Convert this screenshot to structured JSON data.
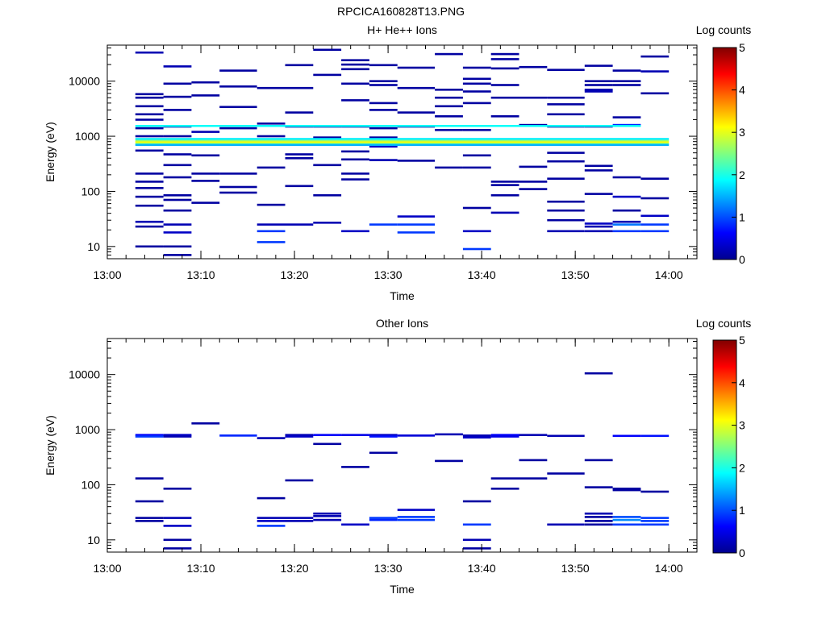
{
  "figure_title": "RPCICA160828T13.PNG",
  "colorbar_colors": [
    "#00008f",
    "#0000ff",
    "#0080ff",
    "#00ffff",
    "#80ff80",
    "#ffff00",
    "#ff8000",
    "#ff0000",
    "#800000"
  ],
  "chart_data": [
    {
      "type": "heatmap",
      "title": "H+ He++ Ions",
      "xlabel": "Time",
      "ylabel": "Energy (eV)",
      "y_scale": "log",
      "ylim": [
        6,
        45000
      ],
      "xlim": [
        "13:00",
        "14:03"
      ],
      "x_ticks": [
        "13:00",
        "13:10",
        "13:20",
        "13:30",
        "13:40",
        "13:50",
        "14:00"
      ],
      "y_ticks": [
        10,
        100,
        1000,
        10000
      ],
      "colorbar": {
        "label": "Log counts",
        "range": [
          0,
          5
        ],
        "ticks": [
          0,
          1,
          2,
          3,
          4,
          5
        ]
      },
      "time_bins": [
        "13:03",
        "13:06",
        "13:09",
        "13:12",
        "13:16",
        "13:19",
        "13:22",
        "13:25",
        "13:28",
        "13:31",
        "13:35",
        "13:38",
        "13:41",
        "13:44",
        "13:47",
        "13:51",
        "13:54",
        "13:57",
        "14:00"
      ],
      "cells": [
        {
          "t0": "13:03",
          "t1": "13:06",
          "e": [
            10,
            5000,
            3500,
            2500,
            2000,
            1400,
            1000,
            550,
            210,
            150,
            115,
            80,
            55,
            28,
            23
          ],
          "v": [
            0.1,
            0.1,
            0.1,
            0.1,
            0.1,
            0.1,
            0.1,
            0.1,
            0.1,
            0.1,
            0.1,
            0.1,
            0.1,
            0.2,
            0.1
          ]
        },
        {
          "t0": "13:03",
          "t1": "13:06",
          "e": [
            33000,
            5800
          ],
          "v": [
            0.2,
            0.1
          ]
        },
        {
          "t0": "13:06",
          "t1": "13:09",
          "e": [
            18500,
            9000,
            5200,
            3000,
            1500,
            1000,
            470,
            300,
            180,
            85,
            70,
            45,
            25,
            18,
            10,
            7
          ],
          "v": [
            0.2,
            0.1,
            0.1,
            0.1,
            0.1,
            0.1,
            0.1,
            0.1,
            0.1,
            0.1,
            0.1,
            0.1,
            0.2,
            0.3,
            0.1,
            0.1
          ]
        },
        {
          "t0": "13:09",
          "t1": "13:12",
          "e": [
            9500,
            5500,
            1200,
            450,
            210,
            155,
            62
          ],
          "v": [
            0.1,
            0.1,
            0.2,
            0.1,
            0.1,
            0.1,
            0.1
          ]
        },
        {
          "t0": "13:12",
          "t1": "13:16",
          "e": [
            15500,
            8000,
            3400,
            1400,
            210,
            120,
            95
          ],
          "v": [
            0.1,
            0.1,
            0.1,
            0.1,
            0.1,
            0.1,
            0.1
          ]
        },
        {
          "t0": "13:16",
          "t1": "13:19",
          "e": [
            7500,
            1700,
            1000,
            270,
            57,
            25,
            19,
            12
          ],
          "v": [
            0.1,
            0.1,
            0.1,
            0.1,
            0.1,
            0.2,
            0.9,
            0.9
          ]
        },
        {
          "t0": "13:19",
          "t1": "13:22",
          "e": [
            19500,
            7500,
            2700,
            1500,
            470,
            400,
            125,
            25
          ],
          "v": [
            0.1,
            0.1,
            0.1,
            0.1,
            0.1,
            0.1,
            0.1,
            0.2
          ]
        },
        {
          "t0": "13:22",
          "t1": "13:25",
          "e": [
            37000,
            13000,
            1500,
            950,
            300,
            85,
            27
          ],
          "v": [
            0.1,
            0.1,
            0.1,
            0.1,
            0.1,
            0.1,
            0.2
          ]
        },
        {
          "t0": "13:25",
          "t1": "13:28",
          "e": [
            24000,
            20000,
            16500,
            9000,
            4500,
            1500,
            530,
            380,
            210,
            165,
            19
          ],
          "v": [
            0.1,
            0.1,
            0.1,
            0.1,
            0.1,
            0.1,
            0.1,
            0.1,
            0.1,
            0.1,
            0.3
          ]
        },
        {
          "t0": "13:28",
          "t1": "13:31",
          "e": [
            19500,
            10000,
            8500,
            4000,
            3000,
            1400,
            950,
            650,
            370,
            25
          ],
          "v": [
            0.1,
            0.1,
            0.1,
            0.1,
            0.1,
            0.1,
            0.1,
            0.3,
            0.2,
            0.9
          ]
        },
        {
          "t0": "13:31",
          "t1": "13:35",
          "e": [
            17500,
            7500,
            2700,
            1500,
            360,
            35,
            25,
            18
          ],
          "v": [
            0.1,
            0.1,
            0.1,
            0.1,
            0.1,
            0.3,
            0.9,
            0.9
          ]
        },
        {
          "t0": "13:35",
          "t1": "13:38",
          "e": [
            31000,
            7000,
            5000,
            3500,
            2300,
            1300,
            270
          ],
          "v": [
            0.1,
            0.1,
            0.1,
            0.1,
            0.1,
            0.1,
            0.1
          ]
        },
        {
          "t0": "13:38",
          "t1": "13:41",
          "e": [
            17500,
            11000,
            9000,
            6500,
            4000,
            1300,
            450,
            270,
            50,
            19,
            9
          ],
          "v": [
            0.1,
            0.1,
            0.1,
            0.1,
            0.1,
            0.1,
            0.1,
            0.1,
            0.1,
            0.3,
            0.9
          ]
        },
        {
          "t0": "13:41",
          "t1": "13:44",
          "e": [
            31000,
            25000,
            17000,
            8500,
            5000,
            2300,
            150,
            130,
            85,
            41
          ],
          "v": [
            0.1,
            0.1,
            0.1,
            0.1,
            0.1,
            0.1,
            0.1,
            0.1,
            0.1,
            0.2
          ]
        },
        {
          "t0": "13:44",
          "t1": "13:47",
          "e": [
            18000,
            5000,
            1600,
            280,
            150,
            110
          ],
          "v": [
            0.1,
            0.1,
            0.1,
            0.1,
            0.1,
            0.1
          ]
        },
        {
          "t0": "13:47",
          "t1": "13:51",
          "e": [
            16000,
            5000,
            3800,
            2500,
            1500,
            500,
            350,
            170,
            65,
            45,
            30,
            19
          ],
          "v": [
            0.1,
            0.1,
            0.1,
            0.1,
            0.1,
            0.1,
            0.1,
            0.1,
            0.1,
            0.1,
            0.1,
            0.2
          ]
        },
        {
          "t0": "13:51",
          "t1": "13:54",
          "e": [
            19000,
            10000,
            8500,
            7000,
            6500,
            1500,
            290,
            240,
            90,
            26,
            23,
            19
          ],
          "v": [
            0.1,
            0.1,
            0.1,
            0.2,
            0.2,
            0.1,
            0.1,
            0.1,
            0.1,
            0.3,
            0.2,
            0.2
          ]
        },
        {
          "t0": "13:54",
          "t1": "13:57",
          "e": [
            15500,
            10000,
            8500,
            2200,
            1600,
            180,
            80,
            45,
            28,
            25,
            19
          ],
          "v": [
            0.1,
            0.1,
            0.1,
            0.1,
            0.8,
            0.1,
            0.3,
            0.1,
            0.2,
            1.2,
            0.9
          ]
        },
        {
          "t0": "13:57",
          "t1": "14:00",
          "e": [
            28000,
            15000,
            6000,
            170,
            75,
            36,
            25,
            19
          ],
          "v": [
            0.1,
            0.2,
            0.1,
            0.1,
            0.1,
            0.3,
            0.9,
            0.9
          ]
        }
      ],
      "bands": [
        {
          "t0": "13:03",
          "t1": "13:57",
          "e": 1550,
          "v": 1.9
        },
        {
          "t0": "13:03",
          "t1": "14:00",
          "e": 900,
          "v": 1.8
        },
        {
          "t0": "13:03",
          "t1": "14:00",
          "e": 830,
          "v": 2.6
        },
        {
          "t0": "13:03",
          "t1": "14:00",
          "e": 780,
          "v": 3.1
        },
        {
          "t0": "13:03",
          "t1": "14:00",
          "e": 730,
          "v": 2.4
        },
        {
          "t0": "13:03",
          "t1": "14:00",
          "e": 700,
          "v": 1.5
        }
      ]
    },
    {
      "type": "heatmap",
      "title": "Other Ions",
      "xlabel": "Time",
      "ylabel": "Energy (eV)",
      "y_scale": "log",
      "ylim": [
        6,
        45000
      ],
      "xlim": [
        "13:00",
        "14:03"
      ],
      "x_ticks": [
        "13:00",
        "13:10",
        "13:20",
        "13:30",
        "13:40",
        "13:50",
        "14:00"
      ],
      "y_ticks": [
        10,
        100,
        1000,
        10000
      ],
      "colorbar": {
        "label": "Log counts",
        "range": [
          0,
          5
        ],
        "ticks": [
          0,
          1,
          2,
          3,
          4,
          5
        ]
      },
      "cells": [
        {
          "t0": "13:03",
          "t1": "13:06",
          "e": [
            800,
            750,
            130,
            50,
            25,
            22
          ],
          "v": [
            0.6,
            0.9,
            0.1,
            0.1,
            0.1,
            0.1
          ]
        },
        {
          "t0": "13:06",
          "t1": "13:09",
          "e": [
            800,
            750,
            85,
            25,
            18,
            10,
            7
          ],
          "v": [
            0.3,
            0.2,
            0.1,
            0.2,
            0.3,
            0.1,
            0.1
          ]
        },
        {
          "t0": "13:09",
          "t1": "13:12",
          "e": [
            1300
          ],
          "v": [
            0.1
          ]
        },
        {
          "t0": "13:12",
          "t1": "13:16",
          "e": [
            780
          ],
          "v": [
            0.8
          ]
        },
        {
          "t0": "13:16",
          "t1": "13:19",
          "e": [
            700,
            57,
            25,
            22,
            18
          ],
          "v": [
            0.2,
            0.1,
            0.2,
            0.3,
            0.9
          ]
        },
        {
          "t0": "13:19",
          "t1": "13:22",
          "e": [
            800,
            750,
            120,
            25,
            22
          ],
          "v": [
            0.2,
            0.3,
            0.1,
            0.2,
            0.2
          ]
        },
        {
          "t0": "13:22",
          "t1": "13:25",
          "e": [
            800,
            550,
            30,
            27,
            23
          ],
          "v": [
            0.6,
            0.1,
            0.2,
            0.2,
            0.2
          ]
        },
        {
          "t0": "13:25",
          "t1": "13:28",
          "e": [
            800,
            210,
            19
          ],
          "v": [
            0.5,
            0.1,
            0.3
          ]
        },
        {
          "t0": "13:28",
          "t1": "13:31",
          "e": [
            800,
            750,
            380,
            25,
            23
          ],
          "v": [
            0.3,
            0.7,
            0.1,
            0.9,
            0.8
          ]
        },
        {
          "t0": "13:31",
          "t1": "13:35",
          "e": [
            780,
            35,
            26,
            23
          ],
          "v": [
            0.4,
            0.3,
            0.9,
            0.9
          ]
        },
        {
          "t0": "13:35",
          "t1": "13:38",
          "e": [
            820,
            270
          ],
          "v": [
            0.2,
            0.1
          ]
        },
        {
          "t0": "13:38",
          "t1": "13:41",
          "e": [
            780,
            720,
            50,
            19,
            10,
            7
          ],
          "v": [
            0.2,
            0.3,
            0.1,
            0.9,
            0.2,
            0.1
          ]
        },
        {
          "t0": "13:41",
          "t1": "13:44",
          "e": [
            800,
            750,
            130,
            85
          ],
          "v": [
            0.6,
            0.5,
            0.1,
            0.1
          ]
        },
        {
          "t0": "13:44",
          "t1": "13:47",
          "e": [
            800,
            280,
            130
          ],
          "v": [
            0.2,
            0.1,
            0.1
          ]
        },
        {
          "t0": "13:47",
          "t1": "13:51",
          "e": [
            770,
            160,
            19
          ],
          "v": [
            0.2,
            0.1,
            0.2
          ]
        },
        {
          "t0": "13:51",
          "t1": "13:54",
          "e": [
            10500,
            280,
            90,
            30,
            26,
            22,
            19
          ],
          "v": [
            0.1,
            0.1,
            0.1,
            0.2,
            0.1,
            0.1,
            0.1
          ]
        },
        {
          "t0": "13:54",
          "t1": "13:57",
          "e": [
            770,
            85,
            80,
            26,
            23,
            19
          ],
          "v": [
            0.6,
            0.1,
            0.1,
            1.0,
            1.3,
            0.9
          ]
        },
        {
          "t0": "13:57",
          "t1": "14:00",
          "e": [
            770,
            75,
            25,
            22,
            19
          ],
          "v": [
            0.7,
            0.1,
            0.9,
            0.9,
            0.9
          ]
        }
      ],
      "bands": []
    }
  ]
}
